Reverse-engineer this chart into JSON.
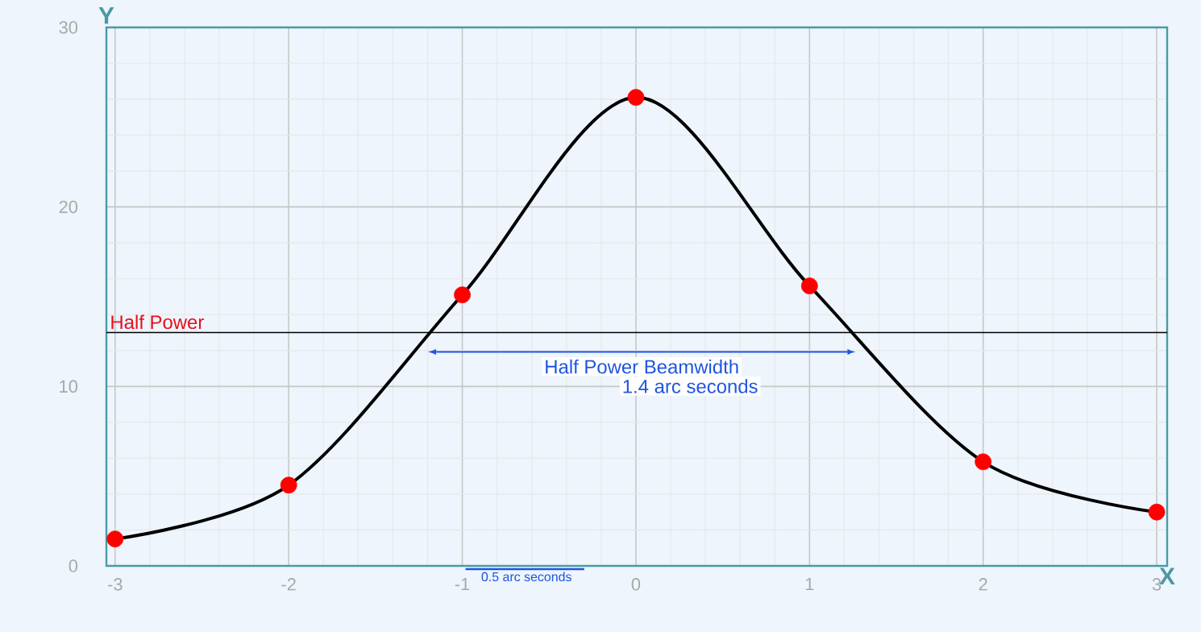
{
  "chart_data": {
    "type": "scatter",
    "xlabel": "X",
    "ylabel": "Y",
    "x": [
      -3,
      -2,
      -1,
      0,
      1,
      2,
      3
    ],
    "series": [
      {
        "type": "line",
        "color": "#000000",
        "marker": "none",
        "line_style": "solid",
        "values": [
          1.5,
          4.5,
          15.1,
          26.1,
          15.6,
          5.8,
          3.0
        ]
      },
      {
        "color": "#ff0000",
        "marker": "circle",
        "values": [
          1.5,
          4.5,
          15.1,
          26.1,
          15.6,
          5.8,
          3.0
        ]
      }
    ],
    "xlim": [
      -3.05,
      3.06
    ],
    "ylim": [
      0,
      30
    ],
    "xticks": [
      -3,
      -2,
      -1,
      0,
      1,
      2,
      3
    ],
    "yticks": [
      0,
      10,
      20,
      30
    ],
    "grid": true,
    "ref_lines": [
      {
        "axis": "y",
        "value": 13,
        "label": "Half Power",
        "color": "#000000"
      }
    ],
    "annotations": [
      "Half Power Beamwidth",
      "1.4 arc seconds",
      "0.5 arc seconds"
    ]
  }
}
